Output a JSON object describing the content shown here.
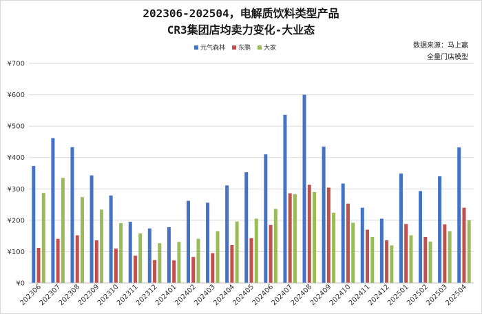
{
  "chart_data": {
    "type": "bar",
    "title": "202306-202504，电解质饮料类型产品",
    "subtitle": "CR3集团店均卖力变化-大业态",
    "source_line1": "数据来源：马上赢",
    "source_line2": "全量门店模型",
    "ylim": [
      0,
      700
    ],
    "y_ticks": [
      0,
      100,
      200,
      300,
      400,
      500,
      600,
      700
    ],
    "y_tick_prefix": "¥",
    "categories": [
      "202306",
      "202307",
      "202308",
      "202309",
      "202310",
      "202311",
      "202312",
      "202401",
      "202402",
      "202403",
      "202404",
      "202405",
      "202406",
      "202407",
      "202408",
      "202409",
      "202410",
      "202411",
      "202412",
      "202501",
      "202502",
      "202503",
      "202504"
    ],
    "series": [
      {
        "name": "元气森林",
        "color": "#4472c4",
        "values": [
          373,
          462,
          433,
          343,
          279,
          195,
          174,
          178,
          262,
          256,
          311,
          353,
          410,
          536,
          600,
          435,
          317,
          240,
          205,
          349,
          293,
          340,
          432
        ]
      },
      {
        "name": "东鹏",
        "color": "#c0504d",
        "values": [
          112,
          141,
          152,
          136,
          110,
          87,
          73,
          72,
          83,
          95,
          121,
          143,
          185,
          286,
          313,
          304,
          253,
          170,
          136,
          188,
          147,
          187,
          240
        ]
      },
      {
        "name": "大家",
        "color": "#9bbb59",
        "values": [
          287,
          335,
          274,
          234,
          191,
          158,
          127,
          131,
          141,
          165,
          196,
          205,
          236,
          283,
          290,
          224,
          192,
          147,
          120,
          152,
          132,
          165,
          200
        ]
      }
    ],
    "grid": true,
    "legend_position": "top"
  }
}
